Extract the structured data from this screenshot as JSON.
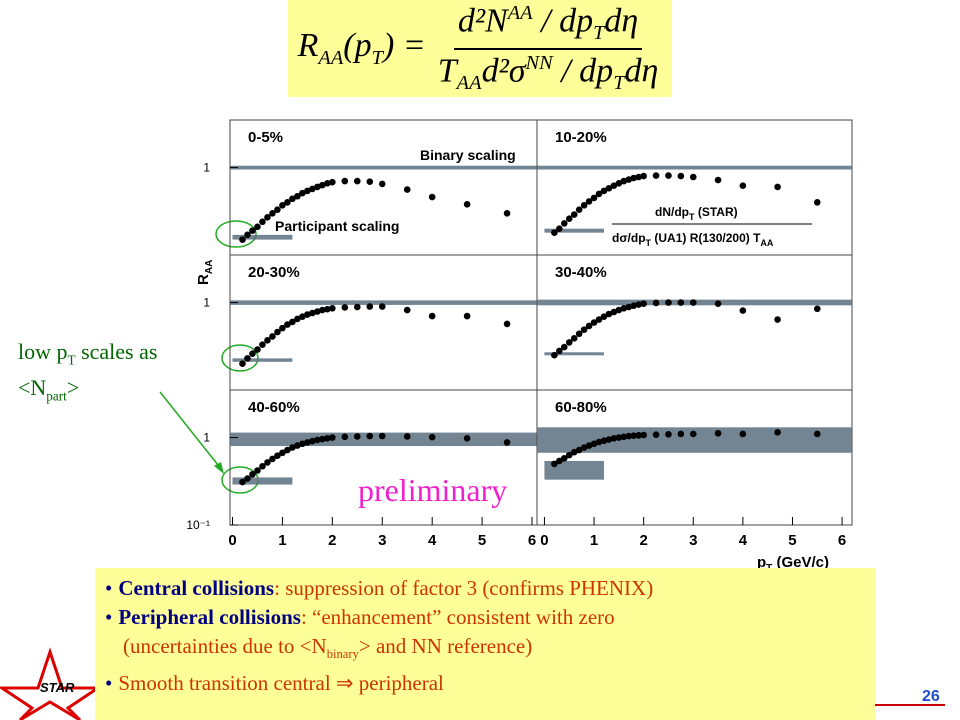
{
  "formula": {
    "lhs": [
      "R",
      "AA",
      "(p",
      "T",
      ") ="
    ],
    "numerator": [
      "d²N",
      "AA",
      " / dp",
      "T",
      "dη"
    ],
    "denominator": [
      "T",
      "AA",
      "d²σ",
      "NN",
      " / dp",
      "T",
      "dη"
    ]
  },
  "annotation": {
    "line1": [
      "low p",
      "T",
      " scales as"
    ],
    "line2": [
      "<N",
      "part",
      ">"
    ]
  },
  "watermark": "preliminary",
  "bullets": [
    {
      "term": "Central collisions",
      "text": ": suppression of factor 3 (confirms PHENIX)"
    },
    {
      "term": "Peripheral collisions",
      "text": ": “enhancement” consistent with zero",
      "line2": [
        "(uncertainties due to <N",
        "binary",
        "> and NN reference)"
      ]
    },
    {
      "text": [
        "Smooth transition central ",
        "⇒",
        " peripheral"
      ]
    }
  ],
  "logo": "STAR",
  "page_number": "26",
  "panel_notes": {
    "binary": "Binary scaling",
    "participant": "Participant scaling",
    "ratio_num": [
      "dN/dp",
      "T",
      " (STAR)"
    ],
    "ratio_den": [
      "dσ/dp",
      "T",
      " (UA1) R(130/200) T",
      "AA"
    ]
  },
  "chart_data": [
    {
      "type": "scatter",
      "label": "0-5%",
      "color": "#000000",
      "log_y": true,
      "xlim": [
        -0.05,
        6.1
      ],
      "ylim": [
        0.1,
        3.5
      ],
      "yticks": [
        1
      ],
      "binary_band": [
        0.95,
        1.05
      ],
      "participant_band": [
        0.15,
        0.17
      ],
      "participant_band_x": [
        0,
        1.2
      ],
      "x": [
        0.2,
        0.3,
        0.4,
        0.5,
        0.6,
        0.7,
        0.8,
        0.9,
        1.0,
        1.1,
        1.2,
        1.3,
        1.4,
        1.5,
        1.6,
        1.7,
        1.8,
        1.9,
        2.0,
        2.25,
        2.5,
        2.75,
        3.0,
        3.5,
        4.0,
        4.7,
        5.5
      ],
      "values": [
        0.15,
        0.17,
        0.19,
        0.21,
        0.24,
        0.27,
        0.3,
        0.33,
        0.37,
        0.4,
        0.44,
        0.47,
        0.51,
        0.54,
        0.57,
        0.6,
        0.63,
        0.66,
        0.68,
        0.7,
        0.7,
        0.69,
        0.65,
        0.56,
        0.46,
        0.38,
        0.3
      ]
    },
    {
      "type": "scatter",
      "label": "10-20%",
      "color": "#000000",
      "log_y": true,
      "xlim": [
        -0.15,
        6.2
      ],
      "ylim": [
        0.1,
        3.5
      ],
      "binary_band": [
        0.95,
        1.05
      ],
      "participant_band": [
        0.18,
        0.2
      ],
      "participant_band_x": [
        0,
        1.2
      ],
      "x": [
        0.2,
        0.3,
        0.4,
        0.5,
        0.6,
        0.7,
        0.8,
        0.9,
        1.0,
        1.1,
        1.2,
        1.3,
        1.4,
        1.5,
        1.6,
        1.7,
        1.8,
        1.9,
        2.0,
        2.25,
        2.5,
        2.75,
        3.0,
        3.5,
        4.0,
        4.7,
        5.5
      ],
      "values": [
        0.18,
        0.2,
        0.23,
        0.26,
        0.29,
        0.33,
        0.37,
        0.41,
        0.45,
        0.5,
        0.54,
        0.58,
        0.62,
        0.66,
        0.7,
        0.73,
        0.76,
        0.78,
        0.8,
        0.81,
        0.81,
        0.8,
        0.78,
        0.72,
        0.62,
        0.6,
        0.4
      ]
    },
    {
      "type": "scatter",
      "label": "20-30%",
      "color": "#000000",
      "log_y": true,
      "xlim": [
        -0.05,
        6.1
      ],
      "ylim": [
        0.1,
        3.5
      ],
      "yticks": [
        1
      ],
      "ylabel": "R",
      "ylabel_sub": "AA",
      "binary_band": [
        0.94,
        1.06
      ],
      "participant_band": [
        0.21,
        0.23
      ],
      "participant_band_x": [
        0,
        1.2
      ],
      "x": [
        0.2,
        0.3,
        0.4,
        0.5,
        0.6,
        0.7,
        0.8,
        0.9,
        1.0,
        1.1,
        1.2,
        1.3,
        1.4,
        1.5,
        1.6,
        1.7,
        1.8,
        1.9,
        2.0,
        2.25,
        2.5,
        2.75,
        3.0,
        3.5,
        4.0,
        4.7,
        5.5
      ],
      "values": [
        0.2,
        0.23,
        0.26,
        0.29,
        0.33,
        0.37,
        0.41,
        0.46,
        0.51,
        0.56,
        0.6,
        0.65,
        0.69,
        0.73,
        0.76,
        0.79,
        0.82,
        0.84,
        0.86,
        0.88,
        0.89,
        0.9,
        0.9,
        0.82,
        0.7,
        0.7,
        0.57
      ]
    },
    {
      "type": "scatter",
      "label": "30-40%",
      "color": "#000000",
      "log_y": true,
      "xlim": [
        -0.15,
        6.2
      ],
      "ylim": [
        0.1,
        3.5
      ],
      "binary_band": [
        0.93,
        1.08
      ],
      "participant_band": [
        0.25,
        0.27
      ],
      "participant_band_x": [
        0,
        1.2
      ],
      "x": [
        0.2,
        0.3,
        0.4,
        0.5,
        0.6,
        0.7,
        0.8,
        0.9,
        1.0,
        1.1,
        1.2,
        1.3,
        1.4,
        1.5,
        1.6,
        1.7,
        1.8,
        1.9,
        2.0,
        2.25,
        2.5,
        2.75,
        3.0,
        3.5,
        4.0,
        4.7,
        5.5
      ],
      "values": [
        0.25,
        0.28,
        0.31,
        0.35,
        0.39,
        0.44,
        0.49,
        0.54,
        0.59,
        0.64,
        0.69,
        0.74,
        0.78,
        0.82,
        0.86,
        0.89,
        0.92,
        0.95,
        0.97,
        0.99,
        1.0,
        1.0,
        1.0,
        0.97,
        0.81,
        0.64,
        0.85
      ]
    },
    {
      "type": "scatter",
      "label": "40-60%",
      "color": "#000000",
      "log_y": true,
      "xlim": [
        -0.05,
        6.1
      ],
      "ylim": [
        0.1,
        3.5
      ],
      "yticks": [
        {
          "value": 0.1,
          "label": "10⁻¹"
        },
        1
      ],
      "xticks": [
        0,
        1,
        2,
        3,
        4,
        5,
        6
      ],
      "binary_band": [
        0.8,
        1.14
      ],
      "participant_band": [
        0.29,
        0.35
      ],
      "participant_band_x": [
        0,
        1.2
      ],
      "x": [
        0.2,
        0.3,
        0.4,
        0.5,
        0.6,
        0.7,
        0.8,
        0.9,
        1.0,
        1.1,
        1.2,
        1.3,
        1.4,
        1.5,
        1.6,
        1.7,
        1.8,
        1.9,
        2.0,
        2.25,
        2.5,
        2.75,
        3.0,
        3.5,
        4.0,
        4.7,
        5.5
      ],
      "values": [
        0.31,
        0.34,
        0.38,
        0.42,
        0.47,
        0.52,
        0.57,
        0.62,
        0.67,
        0.72,
        0.77,
        0.81,
        0.85,
        0.88,
        0.91,
        0.94,
        0.96,
        0.98,
        1.0,
        1.02,
        1.03,
        1.04,
        1.04,
        1.03,
        1.01,
        0.98,
        0.88
      ]
    },
    {
      "type": "scatter",
      "label": "60-80%",
      "color": "#000000",
      "log_y": true,
      "xlim": [
        -0.15,
        6.2
      ],
      "ylim": [
        0.1,
        3.5
      ],
      "xticks": [
        0,
        1,
        2,
        3,
        4,
        5,
        6
      ],
      "xlabel": "p",
      "xlabel_sub": "T",
      "xlabel_unit": " (GeV/c)",
      "binary_band": [
        0.67,
        1.31
      ],
      "participant_band": [
        0.33,
        0.54
      ],
      "participant_band_x": [
        0,
        1.2
      ],
      "x": [
        0.2,
        0.3,
        0.4,
        0.5,
        0.6,
        0.7,
        0.8,
        0.9,
        1.0,
        1.1,
        1.2,
        1.3,
        1.4,
        1.5,
        1.6,
        1.7,
        1.8,
        1.9,
        2.0,
        2.25,
        2.5,
        2.75,
        3.0,
        3.5,
        4.0,
        4.7,
        5.5
      ],
      "values": [
        0.5,
        0.54,
        0.58,
        0.63,
        0.68,
        0.72,
        0.77,
        0.81,
        0.85,
        0.89,
        0.92,
        0.95,
        0.98,
        1.0,
        1.02,
        1.04,
        1.05,
        1.06,
        1.07,
        1.08,
        1.09,
        1.1,
        1.1,
        1.12,
        1.1,
        1.15,
        1.1
      ]
    }
  ]
}
